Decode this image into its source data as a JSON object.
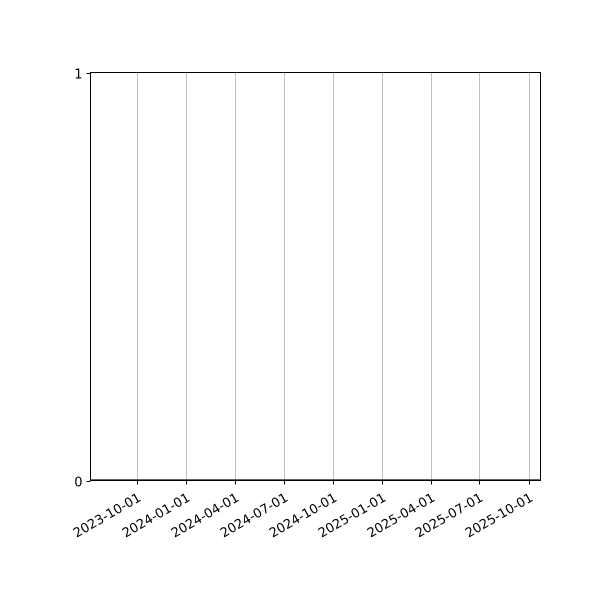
{
  "chart_data": {
    "type": "line",
    "title": "",
    "xlabel": "",
    "ylabel": "",
    "x_tick_labels": [
      "2023-10-01",
      "2024-01-01",
      "2024-04-01",
      "2024-07-01",
      "2024-10-01",
      "2025-01-01",
      "2025-04-01",
      "2025-07-01",
      "2025-10-01"
    ],
    "y_tick_labels": [
      "0",
      "1"
    ],
    "xlim": [
      "2023-07-07",
      "2025-10-23"
    ],
    "ylim": [
      0,
      1
    ],
    "grid": "x-axis only",
    "series": [
      {
        "x": [
          "2023-07-07",
          "2025-10-23"
        ],
        "y": [
          0,
          0
        ],
        "color": "#1f1fb4"
      }
    ],
    "colors": {
      "grid": "#b0b0b0",
      "axis": "#000000"
    }
  }
}
